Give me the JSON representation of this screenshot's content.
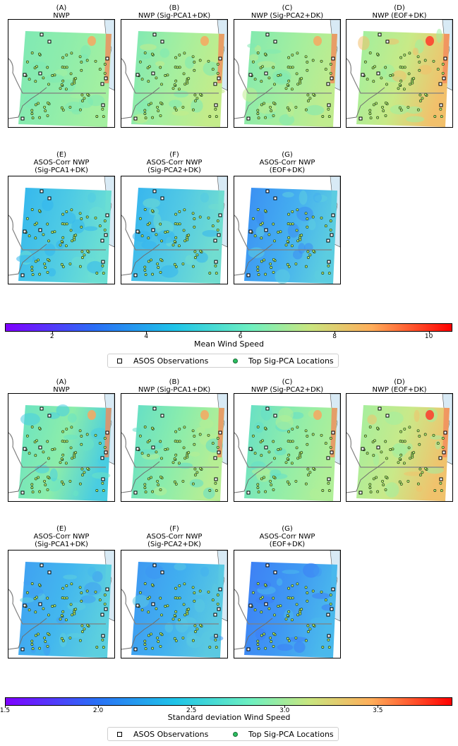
{
  "figure_blocks": [
    {
      "panels": [
        {
          "letter": "(A)",
          "line1": "NWP",
          "line2": "",
          "line3": ""
        },
        {
          "letter": "(B)",
          "line1": "NWP (Sig-PCA1+DK)",
          "line2": "",
          "line3": ""
        },
        {
          "letter": "(C)",
          "line1": "NWP (Sig-PCA2+DK)",
          "line2": "",
          "line3": ""
        },
        {
          "letter": "(D)",
          "line1": "NWP (EOF+DK)",
          "line2": "",
          "line3": ""
        },
        {
          "letter": "(E)",
          "line1": "ASOS-Corr NWP",
          "line2": "(Sig-PCA1+DK)",
          "line3": ""
        },
        {
          "letter": "(F)",
          "line1": "ASOS-Corr NWP",
          "line2": "(Sig-PCA2+DK)",
          "line3": ""
        },
        {
          "letter": "(G)",
          "line1": "ASOS-Corr NWP",
          "line2": "(EOF+DK)",
          "line3": ""
        }
      ],
      "colorbar": {
        "label": "Mean Wind Speed",
        "ticks": [
          "2",
          "4",
          "6",
          "8",
          "10"
        ],
        "tick_values": [
          2,
          4,
          6,
          8,
          10
        ],
        "range": [
          1.0,
          10.5
        ]
      }
    },
    {
      "panels": [
        {
          "letter": "(A)",
          "line1": "NWP",
          "line2": "",
          "line3": ""
        },
        {
          "letter": "(B)",
          "line1": "NWP (Sig-PCA1+DK)",
          "line2": "",
          "line3": ""
        },
        {
          "letter": "(C)",
          "line1": "NWP (Sig-PCA2+DK)",
          "line2": "",
          "line3": ""
        },
        {
          "letter": "(D)",
          "line1": "NWP (EOF+DK)",
          "line2": "",
          "line3": ""
        },
        {
          "letter": "(E)",
          "line1": "ASOS-Corr NWP",
          "line2": "(Sig-PCA1+DK)",
          "line3": ""
        },
        {
          "letter": "(F)",
          "line1": "ASOS-Corr NWP",
          "line2": "(Sig-PCA2+DK)",
          "line3": ""
        },
        {
          "letter": "(G)",
          "line1": "ASOS-Corr NWP",
          "line2": "(EOF+DK)",
          "line3": ""
        }
      ],
      "colorbar": {
        "label": "Standard deviation Wind Speed",
        "ticks": [
          "1.5",
          "2.0",
          "2.5",
          "3.0",
          "3.5"
        ],
        "tick_values": [
          1.5,
          2.0,
          2.5,
          3.0,
          3.5
        ],
        "range": [
          1.5,
          3.9
        ]
      }
    }
  ],
  "legend": {
    "asos_label": "ASOS Observations",
    "sigpca_label": "Top Sig-PCA Locations"
  },
  "colors": {
    "asos_marker_edge": "#000000",
    "sigpca_marker": "#2bbf60",
    "lake": "#d8eaf5",
    "border": "#808080"
  },
  "chart_data": [
    {
      "type": "heatmap",
      "title": "Mean Wind Speed",
      "colorbar_label": "Mean Wind Speed",
      "colorbar_range": [
        1.0,
        10.5
      ],
      "colormap": "rainbow",
      "panels": [
        "NWP",
        "NWP (Sig-PCA1+DK)",
        "NWP (Sig-PCA2+DK)",
        "NWP (EOF+DK)",
        "ASOS-Corr NWP (Sig-PCA1+DK)",
        "ASOS-Corr NWP (Sig-PCA2+DK)",
        "ASOS-Corr NWP (EOF+DK)"
      ]
    },
    {
      "type": "heatmap",
      "title": "Standard deviation Wind Speed",
      "colorbar_label": "Standard deviation Wind Speed",
      "colorbar_range": [
        1.5,
        3.9
      ],
      "colormap": "rainbow",
      "panels": [
        "NWP",
        "NWP (Sig-PCA1+DK)",
        "NWP (Sig-PCA2+DK)",
        "NWP (EOF+DK)",
        "ASOS-Corr NWP (Sig-PCA1+DK)",
        "ASOS-Corr NWP (Sig-PCA2+DK)",
        "ASOS-Corr NWP (EOF+DK)"
      ]
    }
  ]
}
